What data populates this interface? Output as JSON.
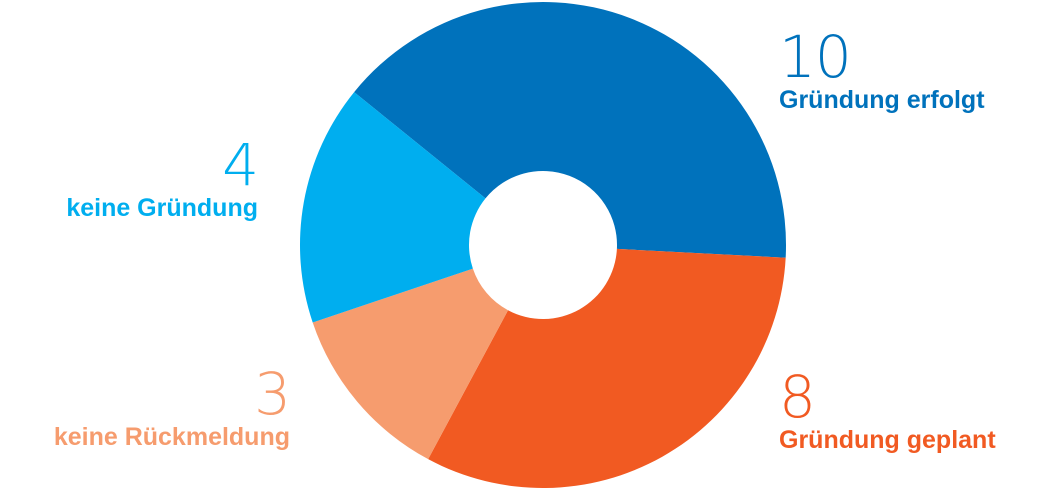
{
  "chart_data": {
    "type": "pie",
    "variant": "donut",
    "slices": [
      {
        "label": "Gründung erfolgt",
        "value": 10,
        "color": "#0072BC"
      },
      {
        "label": "Gründung geplant",
        "value": 8,
        "color": "#F15A22"
      },
      {
        "label": "keine Rückmeldung",
        "value": 3,
        "color": "#F69C6E"
      },
      {
        "label": "keine Gründung",
        "value": 4,
        "color": "#00AEEF"
      }
    ],
    "legend": "none"
  }
}
